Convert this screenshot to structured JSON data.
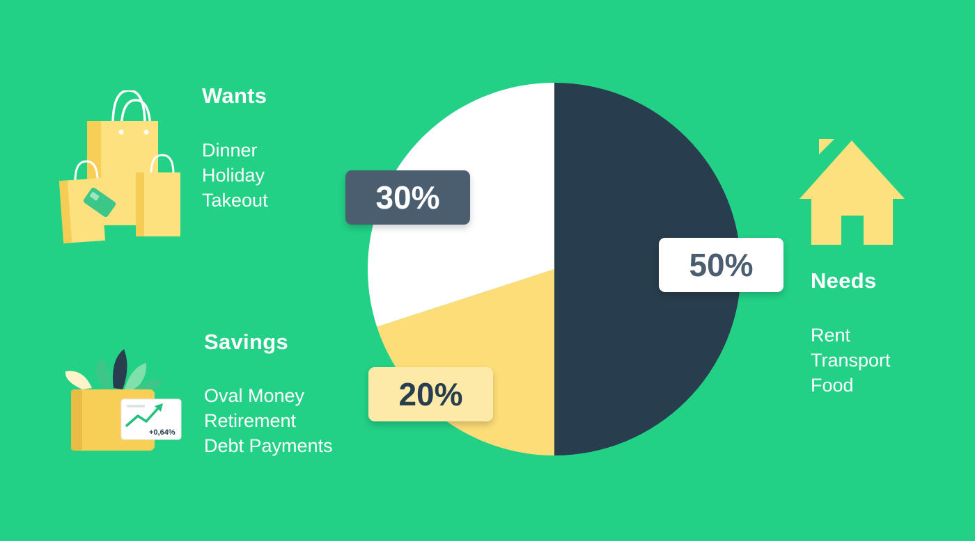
{
  "colors": {
    "background": "#22d086",
    "needs_slice": "#283d4d",
    "wants_slice": "#ffffff",
    "savings_slice": "#fddd78",
    "wants_badge_bg": "#4a5e70",
    "wants_badge_text": "#ffffff",
    "needs_badge_bg": "#ffffff",
    "needs_badge_text": "#4a5e70",
    "savings_badge_bg": "#feeaa8",
    "savings_badge_text": "#283d4d"
  },
  "chart_data": {
    "type": "pie",
    "slices": [
      {
        "label": "Needs",
        "value": 50,
        "display": "50%"
      },
      {
        "label": "Savings",
        "value": 20,
        "display": "20%"
      },
      {
        "label": "Wants",
        "value": 30,
        "display": "30%"
      }
    ]
  },
  "categories": {
    "wants": {
      "title": "Wants",
      "items": [
        "Dinner",
        "Holiday",
        "Takeout"
      ],
      "icon": "shopping-bags-icon"
    },
    "savings": {
      "title": "Savings",
      "items": [
        "Oval Money",
        "Retirement",
        "Debt Payments"
      ],
      "icon": "wallet-plants-icon",
      "chart_label": "+0,64%"
    },
    "needs": {
      "title": "Needs",
      "items": [
        "Rent",
        "Transport",
        "Food"
      ],
      "icon": "house-icon"
    }
  }
}
